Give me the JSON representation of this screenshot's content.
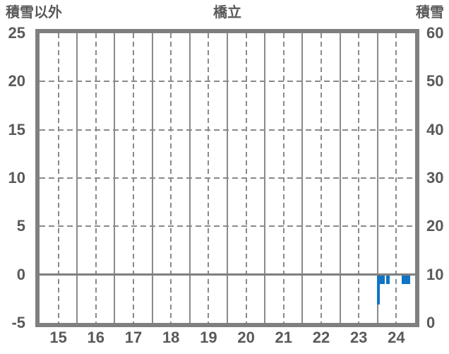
{
  "header": {
    "left_axis_title": "積雪以外",
    "title": "橋立",
    "right_axis_title": "積雪"
  },
  "colors": {
    "bar": "#1174c5",
    "grid": "#8a8a8a",
    "frame": "#7f7f7f",
    "zero_line": "#7f7f7f",
    "text": "#595959",
    "background": "#ffffff"
  },
  "chart_data": {
    "type": "bar",
    "title": "橋立",
    "left_axis": {
      "title": "積雪以外",
      "ticks": [
        25,
        20,
        15,
        10,
        5,
        0,
        -5
      ],
      "range": [
        -5,
        25
      ],
      "dashed_gridline_values": [
        20,
        15,
        10,
        5
      ],
      "zero_line_value": 0
    },
    "right_axis": {
      "title": "積雪",
      "ticks": [
        60,
        50,
        40,
        30,
        20,
        10,
        0
      ],
      "range": [
        0,
        60
      ]
    },
    "x_axis": {
      "ticks": [
        15,
        16,
        17,
        18,
        19,
        20,
        21,
        22,
        23,
        24
      ],
      "range": [
        15,
        25
      ],
      "solid_gridlines_at_band_edges": true,
      "dashed_gridlines_at_band_centers": true
    },
    "bars": [
      {
        "x_start": 23.98,
        "x_end": 24.06,
        "value": -3.1
      },
      {
        "x_start": 24.06,
        "x_end": 24.19,
        "value": -1.0
      },
      {
        "x_start": 24.23,
        "x_end": 24.33,
        "value": -1.0
      },
      {
        "x_start": 24.65,
        "x_end": 24.86,
        "value": -1.0
      }
    ],
    "grid": true,
    "legend": null
  }
}
